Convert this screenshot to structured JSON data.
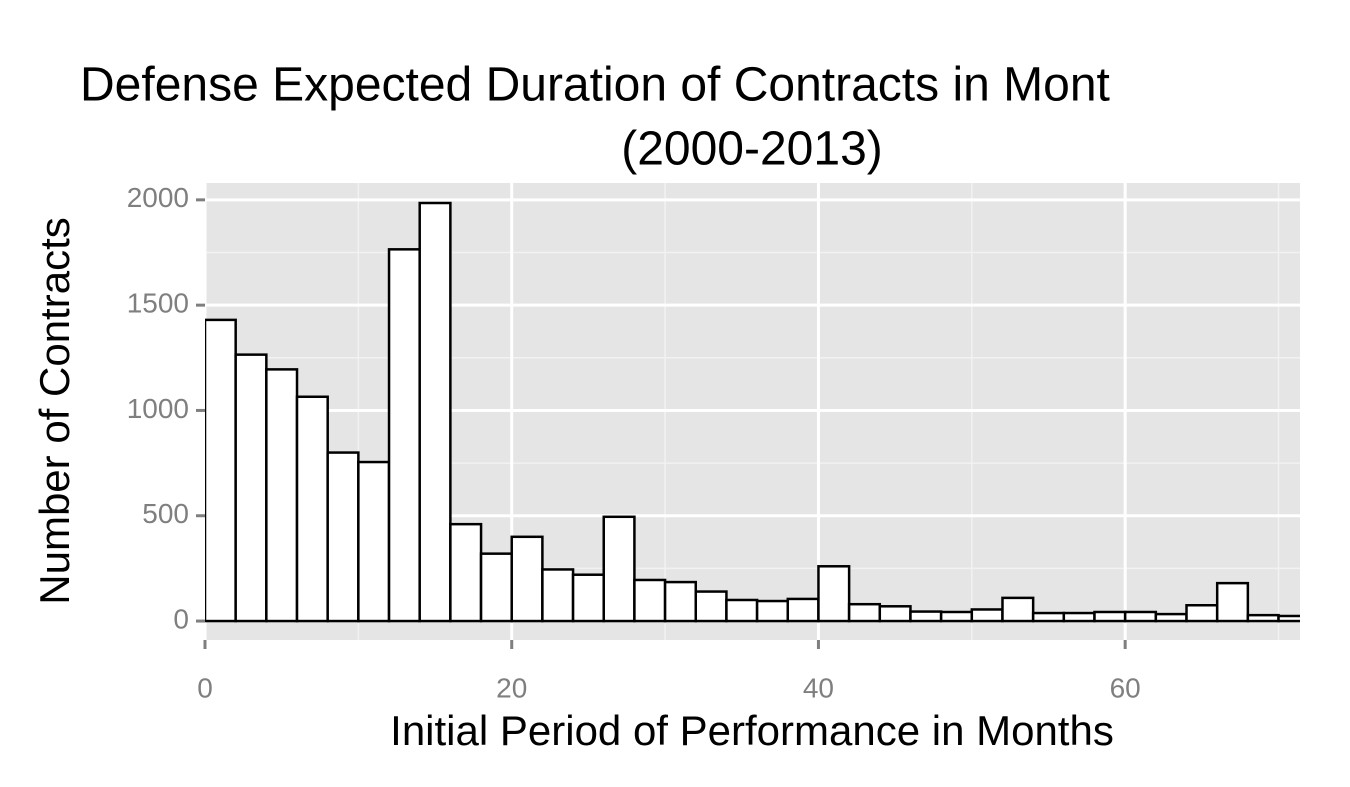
{
  "chart_data": {
    "type": "histogram",
    "title": "Defense Expected Duration of Contracts in Mont",
    "subtitle": "(2000-2013)",
    "x_label": "Initial Period of Performance in Months",
    "y_label": "Number of Contracts",
    "bins": [
      0,
      2,
      4,
      6,
      8,
      10,
      12,
      14,
      16,
      18,
      20,
      22,
      24,
      26,
      28,
      30,
      32,
      34,
      36,
      38,
      40,
      42,
      44,
      46,
      48,
      50,
      52,
      54,
      56,
      58,
      60,
      62,
      64,
      66,
      68,
      70,
      72
    ],
    "values": [
      1430,
      1265,
      1195,
      1065,
      800,
      755,
      1765,
      1985,
      460,
      320,
      400,
      245,
      220,
      495,
      195,
      185,
      140,
      100,
      95,
      105,
      260,
      80,
      70,
      45,
      43,
      55,
      110,
      38,
      38,
      43,
      43,
      33,
      75,
      180,
      28,
      24
    ],
    "color": "#ffffff",
    "edge_color": "#000000",
    "xlim": [
      0,
      71.4
    ],
    "ylim": [
      -90,
      2080
    ],
    "xticks": [
      0,
      20,
      40,
      60
    ],
    "yticks": [
      0,
      500,
      1000,
      1500,
      2000
    ],
    "x_minor_ticks": [
      10,
      30,
      50,
      70
    ],
    "y_minor_ticks": [
      250,
      750,
      1250,
      1750
    ],
    "grid": true
  }
}
